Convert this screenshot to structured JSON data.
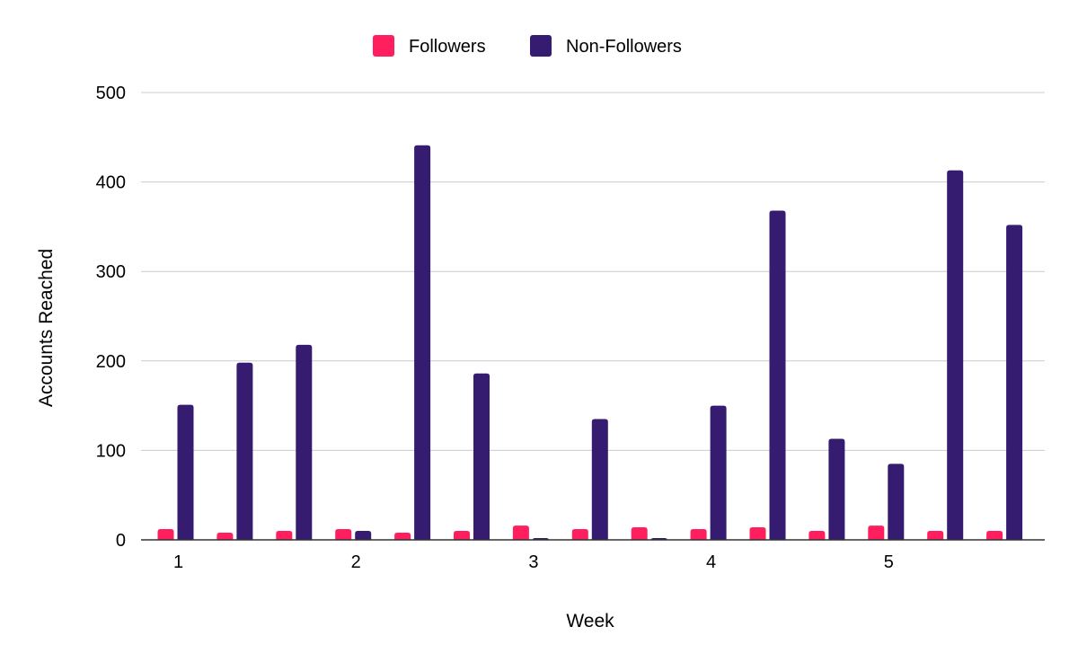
{
  "chart_data": {
    "type": "bar",
    "title": "",
    "xlabel": "Week",
    "ylabel": "Accounts Reached",
    "ylim": [
      0,
      500
    ],
    "yticks": [
      0,
      100,
      200,
      300,
      400,
      500
    ],
    "xtick_labels": [
      {
        "group": 0,
        "label": "1"
      },
      {
        "group": 3,
        "label": "2"
      },
      {
        "group": 6,
        "label": "3"
      },
      {
        "group": 9,
        "label": "4"
      },
      {
        "group": 12,
        "label": "5"
      }
    ],
    "grid": true,
    "legend_position": "top-center",
    "series": [
      {
        "name": "Followers",
        "color": "#ff1f5e",
        "values": [
          12,
          8,
          10,
          12,
          8,
          10,
          16,
          12,
          14,
          12,
          14,
          10,
          16,
          10,
          10
        ]
      },
      {
        "name": "Non-Followers",
        "color": "#351c70",
        "values": [
          151,
          198,
          218,
          10,
          441,
          186,
          2,
          135,
          2,
          150,
          368,
          113,
          85,
          413,
          352
        ]
      }
    ]
  }
}
